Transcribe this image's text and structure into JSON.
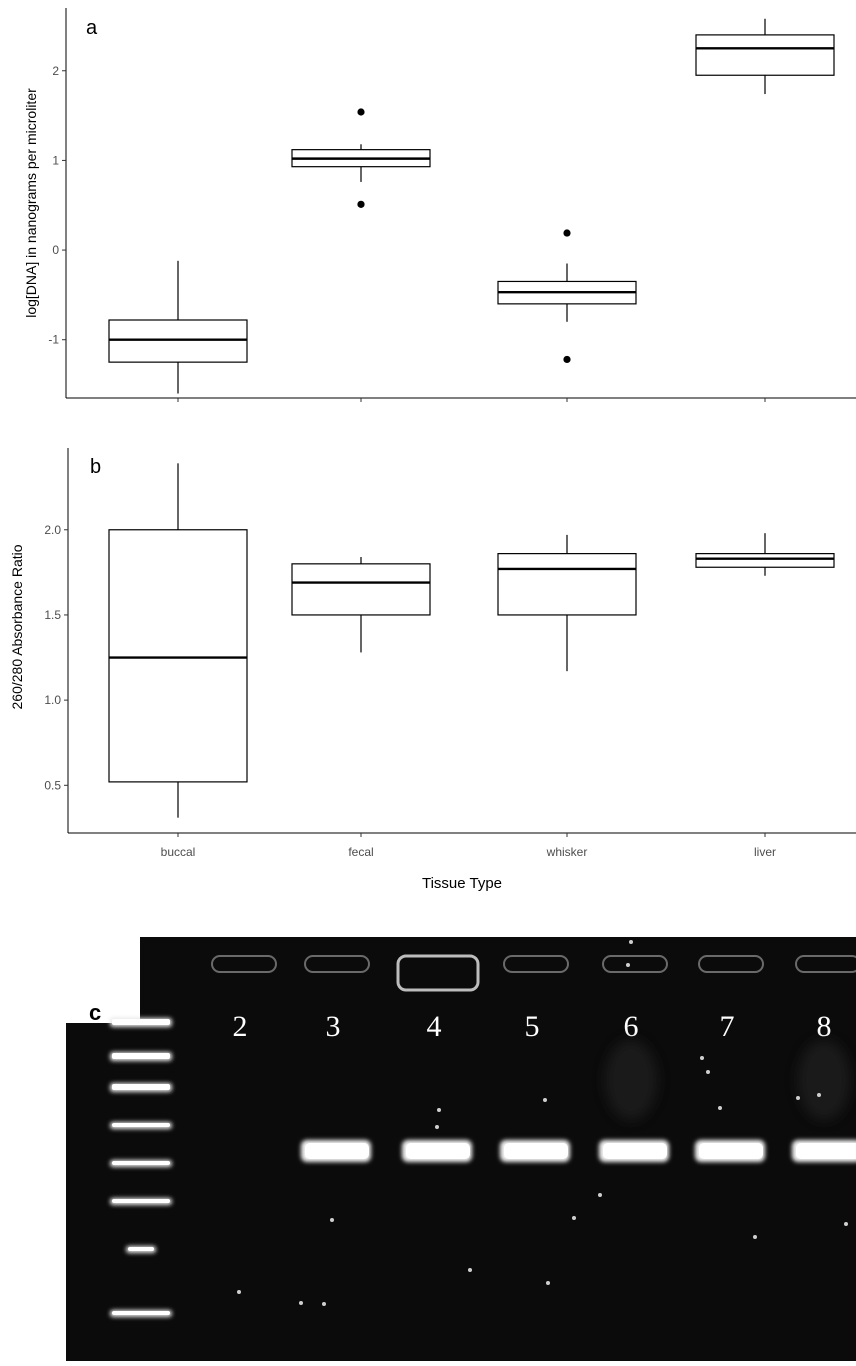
{
  "chart_data": [
    {
      "type": "box",
      "panel_label": "a",
      "ylabel": "log[DNA] in nanograms per microliter",
      "ylim": [
        -1.65,
        2.7
      ],
      "yticks": [
        -1,
        0,
        1,
        2
      ],
      "categories": [
        "buccal",
        "fecal",
        "whisker",
        "liver"
      ],
      "boxes": [
        {
          "category": "buccal",
          "min": -1.6,
          "q1": -1.25,
          "median": -1.0,
          "q3": -0.78,
          "max": -0.12,
          "outliers": []
        },
        {
          "category": "fecal",
          "min": 0.76,
          "q1": 0.93,
          "median": 1.02,
          "q3": 1.12,
          "max": 1.18,
          "outliers": [
            1.54,
            0.51
          ]
        },
        {
          "category": "whisker",
          "min": -0.8,
          "q1": -0.6,
          "median": -0.47,
          "q3": -0.35,
          "max": -0.15,
          "outliers": [
            0.19,
            -1.22
          ]
        },
        {
          "category": "liver",
          "min": 1.74,
          "q1": 1.95,
          "median": 2.25,
          "q3": 2.4,
          "max": 2.58,
          "outliers": []
        }
      ],
      "grid": false
    },
    {
      "type": "box",
      "panel_label": "b",
      "xlabel": "Tissue Type",
      "ylabel": "260/280 Absorbance Ratio",
      "ylim": [
        0.22,
        2.48
      ],
      "yticks": [
        0.5,
        1.0,
        1.5,
        2.0
      ],
      "ytick_labels": [
        "0.5",
        "1.0",
        "1.5",
        "2.0"
      ],
      "categories": [
        "buccal",
        "fecal",
        "whisker",
        "liver"
      ],
      "boxes": [
        {
          "category": "buccal",
          "min": 0.31,
          "q1": 0.52,
          "median": 1.25,
          "q3": 2.0,
          "max": 2.39,
          "outliers": []
        },
        {
          "category": "fecal",
          "min": 1.28,
          "q1": 1.5,
          "median": 1.69,
          "q3": 1.8,
          "max": 1.84,
          "outliers": []
        },
        {
          "category": "whisker",
          "min": 1.17,
          "q1": 1.5,
          "median": 1.77,
          "q3": 1.86,
          "max": 1.97,
          "outliers": []
        },
        {
          "category": "liver",
          "min": 1.73,
          "q1": 1.78,
          "median": 1.83,
          "q3": 1.86,
          "max": 1.98,
          "outliers": []
        }
      ],
      "grid": false
    }
  ],
  "gel": {
    "panel_label": "c",
    "lane_labels": [
      "2",
      "3",
      "4",
      "5",
      "6",
      "7",
      "8"
    ]
  }
}
